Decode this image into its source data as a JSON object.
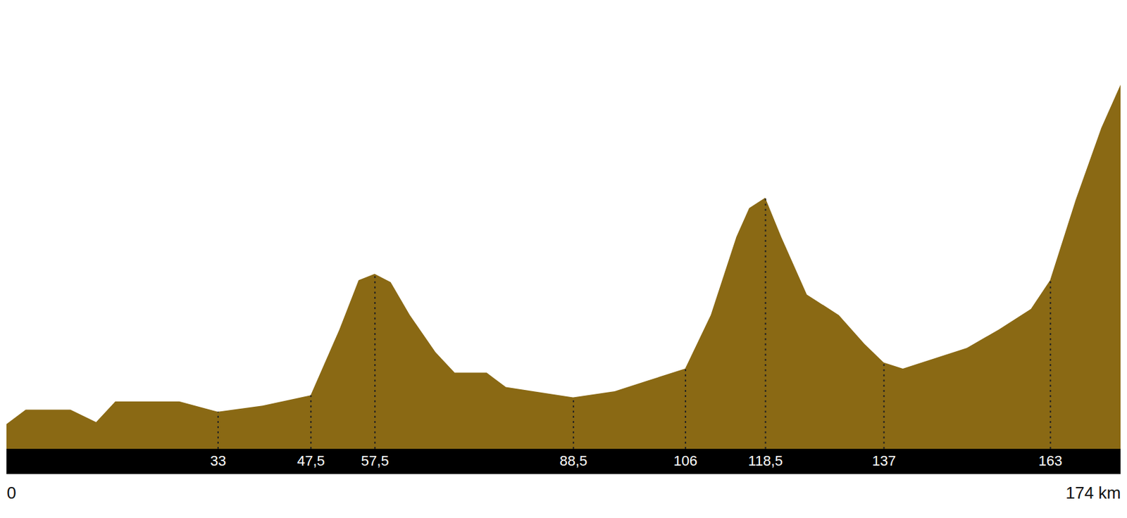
{
  "chart_data": {
    "type": "area",
    "x": [
      0,
      3,
      10,
      14,
      17,
      27,
      33,
      40,
      47.5,
      52,
      55,
      57.5,
      60,
      63,
      67,
      70,
      75,
      78,
      88.5,
      95,
      100,
      106,
      110,
      114,
      116,
      118.5,
      121,
      125,
      130,
      134,
      137,
      140,
      145,
      150,
      155,
      160,
      163,
      167,
      171,
      174
    ],
    "values": [
      120,
      190,
      190,
      130,
      230,
      230,
      180,
      210,
      260,
      580,
      820,
      850,
      810,
      650,
      470,
      370,
      370,
      300,
      250,
      280,
      330,
      390,
      650,
      1030,
      1170,
      1220,
      1030,
      750,
      650,
      510,
      420,
      390,
      440,
      490,
      580,
      680,
      820,
      1210,
      1560,
      1770
    ],
    "color": "#f3c41a",
    "xlim": [
      0,
      174
    ],
    "ylim": [
      0,
      2150
    ],
    "xticks": [
      {
        "value": 0,
        "label": "0"
      },
      33,
      {
        "value": 47.5,
        "label": "47,5"
      },
      {
        "value": 57.5,
        "label": "57,5"
      },
      {
        "value": 88.5,
        "label": "88,5"
      },
      106,
      {
        "value": 118.5,
        "label": "118,5"
      },
      137,
      163,
      {
        "value": 174,
        "label": "174 km"
      }
    ],
    "tick_labels": "x"
  }
}
